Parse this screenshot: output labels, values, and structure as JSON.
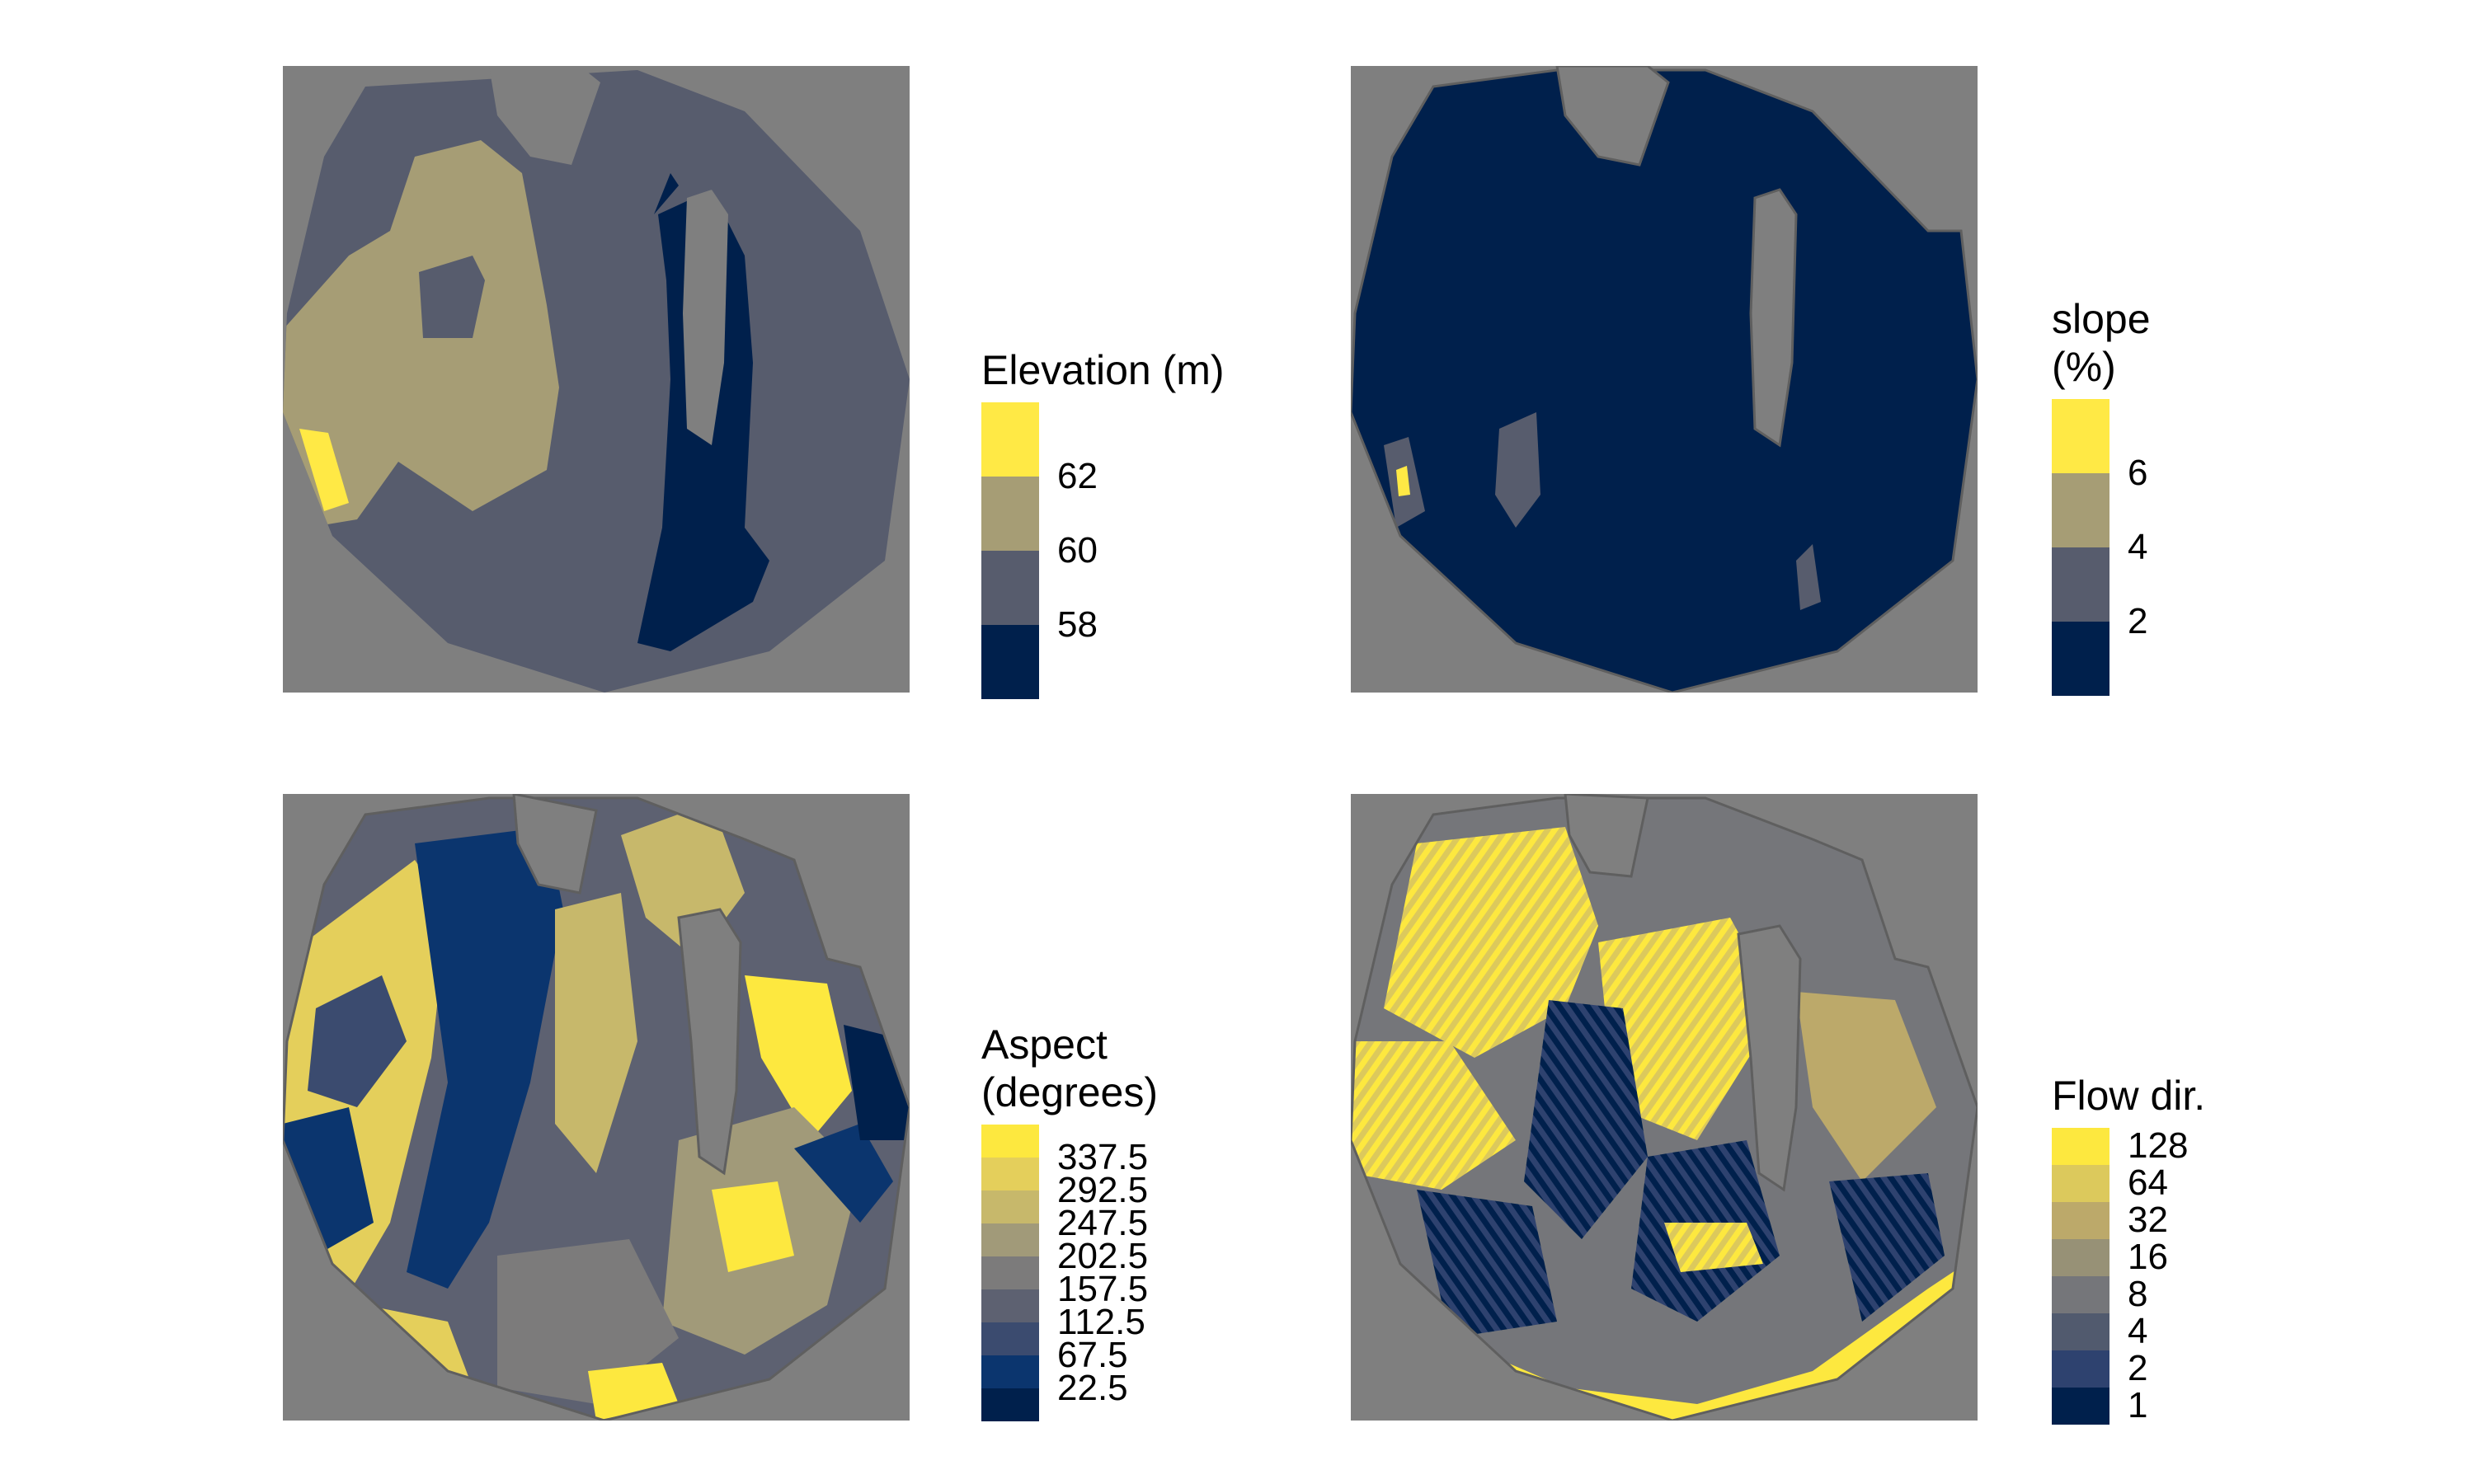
{
  "colors": {
    "background": "#7f7f7f",
    "boundary": "#5f5f5f",
    "hole": "#7f7f7f"
  },
  "panels": {
    "elevation": {
      "title_lines": [
        "Elevation (m)"
      ],
      "labels": [
        "62",
        "60",
        "58"
      ],
      "colors": [
        "#ffe945",
        "#a69d75",
        "#575c6d",
        "#00204c"
      ]
    },
    "slope": {
      "title_lines": [
        "slope",
        "(%)"
      ],
      "labels": [
        "6",
        "4",
        "2"
      ],
      "colors": [
        "#ffe945",
        "#a69d75",
        "#575c6d",
        "#00204c"
      ]
    },
    "aspect": {
      "title_lines": [
        "Aspect",
        "(degrees)"
      ],
      "labels": [
        "337.5",
        "292.5",
        "247.5",
        "202.5",
        "157.5",
        "112.5",
        "67.5",
        "22.5"
      ],
      "colors": [
        "#fde83f",
        "#e4cf5b",
        "#c7b86b",
        "#a19a79",
        "#7c7b7b",
        "#5d6171",
        "#3b4b6f",
        "#0b356e",
        "#00204c"
      ]
    },
    "flow": {
      "title_lines": [
        "Flow dir."
      ],
      "labels": [
        "128",
        "64",
        "32",
        "16",
        "8",
        "4",
        "2",
        "1"
      ],
      "colors": [
        "#fde83f",
        "#dcc95c",
        "#bca96a",
        "#979176",
        "#75767a",
        "#515a6e",
        "#2e426f",
        "#00204c"
      ]
    }
  }
}
